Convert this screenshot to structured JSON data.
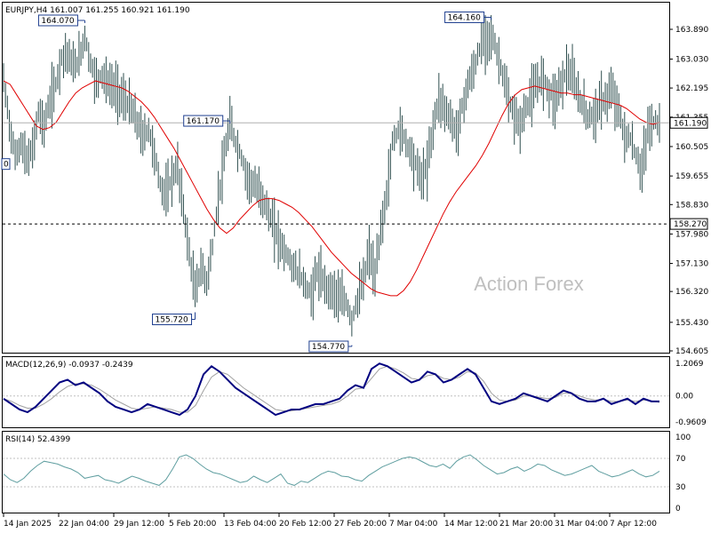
{
  "chart_data": {
    "type": "line",
    "symbol_info": "EURJPY,H4  161.007 161.255 160.921 161.190",
    "watermark": "Action Forex",
    "colors": {
      "price": "#2f4f4f",
      "ma": "#e00000",
      "macd": "#000080",
      "signal": "#a0a0a0",
      "rsi": "#5f9ea0",
      "accent": "#1f3f8f"
    },
    "x_ticks": [
      "14 Jan 2025",
      "22 Jan 04:00",
      "29 Jan 12:00",
      "5 Feb 20:00",
      "13 Feb 04:00",
      "20 Feb 12:00",
      "27 Feb 20:00",
      "7 Mar 04:00",
      "14 Mar 12:00",
      "21 Mar 20:00",
      "31 Mar 04:00",
      "7 Apr 12:00"
    ],
    "price": {
      "y_ticks": [
        "163.890",
        "163.030",
        "162.195",
        "161.355",
        "160.505",
        "159.655",
        "158.830",
        "157.980",
        "157.130",
        "156.320",
        "155.430",
        "154.605"
      ],
      "ylim": [
        154.605,
        163.89
      ],
      "current": "161.190",
      "hline": "158.270",
      "left_label": "0",
      "annotations": [
        {
          "text": "164.070",
          "value": 164.07,
          "t": 14
        },
        {
          "text": "161.170",
          "value": 161.17,
          "t": 39
        },
        {
          "text": "155.720",
          "value": 155.72,
          "t": 33
        },
        {
          "text": "154.770",
          "value": 154.77,
          "t": 60
        },
        {
          "text": "164.160",
          "value": 164.16,
          "t": 84
        }
      ],
      "close": [
        162.4,
        161.2,
        160.2,
        160.6,
        160.1,
        160.4,
        161.5,
        161.1,
        161.8,
        162.3,
        163.1,
        163.2,
        162.8,
        163.0,
        163.7,
        162.9,
        162.4,
        162.6,
        162.3,
        162.2,
        162.0,
        161.8,
        161.6,
        161.2,
        160.8,
        161.0,
        160.3,
        159.4,
        159.1,
        159.6,
        159.9,
        158.7,
        157.4,
        156.3,
        157.0,
        156.6,
        157.6,
        159.0,
        160.1,
        161.2,
        160.6,
        160.2,
        159.6,
        159.4,
        159.2,
        158.9,
        158.4,
        158.0,
        157.6,
        157.3,
        157.0,
        156.8,
        156.5,
        156.2,
        156.9,
        156.6,
        156.4,
        156.3,
        156.1,
        156.0,
        155.5,
        156.1,
        156.6,
        157.5,
        156.7,
        158.1,
        159.1,
        160.6,
        161.0,
        160.8,
        160.4,
        160.0,
        159.6,
        159.9,
        161.1,
        161.9,
        161.6,
        161.3,
        160.9,
        161.6,
        162.3,
        162.7,
        163.3,
        163.6,
        163.8,
        163.2,
        162.6,
        161.8,
        161.4,
        161.1,
        161.6,
        162.0,
        162.3,
        162.5,
        162.1,
        161.9,
        162.3,
        162.7,
        162.5,
        162.0,
        161.6,
        161.3,
        161.5,
        161.8,
        161.9,
        162.1,
        161.5,
        160.8,
        160.7,
        160.2,
        159.8,
        161.0,
        161.2,
        161.19
      ],
      "ma": [
        162.4,
        162.3,
        162.0,
        161.7,
        161.4,
        161.1,
        161.0,
        161.05,
        161.2,
        161.5,
        161.8,
        162.05,
        162.2,
        162.3,
        162.4,
        162.35,
        162.3,
        162.25,
        162.2,
        162.1,
        161.95,
        161.8,
        161.6,
        161.35,
        161.05,
        160.75,
        160.45,
        160.1,
        159.75,
        159.4,
        159.05,
        158.7,
        158.4,
        158.15,
        158.0,
        158.15,
        158.4,
        158.6,
        158.8,
        158.95,
        159.0,
        159.0,
        158.95,
        158.85,
        158.75,
        158.6,
        158.4,
        158.2,
        157.95,
        157.7,
        157.45,
        157.25,
        157.05,
        156.85,
        156.7,
        156.55,
        156.4,
        156.3,
        156.25,
        156.2,
        156.2,
        156.35,
        156.6,
        156.95,
        157.35,
        157.75,
        158.15,
        158.55,
        158.9,
        159.2,
        159.45,
        159.7,
        159.95,
        160.25,
        160.6,
        161.0,
        161.4,
        161.75,
        162.0,
        162.15,
        162.2,
        162.25,
        162.2,
        162.15,
        162.1,
        162.05,
        162.05,
        162.0,
        162.0,
        161.95,
        161.9,
        161.85,
        161.8,
        161.75,
        161.7,
        161.6,
        161.45,
        161.3,
        161.2,
        161.15,
        161.2
      ]
    },
    "macd": {
      "label": "MACD(12,26,9) -0.0937 -0.2439",
      "y_ticks": [
        "1.2069",
        "0.00",
        "-0.9609"
      ],
      "ylim": [
        -0.9609,
        1.2069
      ],
      "main": [
        -0.1,
        -0.3,
        -0.5,
        -0.6,
        -0.4,
        -0.1,
        0.2,
        0.5,
        0.6,
        0.4,
        0.5,
        0.3,
        0.1,
        -0.2,
        -0.4,
        -0.5,
        -0.6,
        -0.5,
        -0.3,
        -0.4,
        -0.5,
        -0.6,
        -0.7,
        -0.5,
        0.0,
        0.8,
        1.1,
        0.9,
        0.6,
        0.3,
        0.1,
        -0.1,
        -0.3,
        -0.5,
        -0.7,
        -0.6,
        -0.5,
        -0.5,
        -0.4,
        -0.3,
        -0.3,
        -0.2,
        -0.1,
        0.2,
        0.4,
        0.3,
        1.0,
        1.2,
        1.1,
        0.9,
        0.7,
        0.5,
        0.6,
        0.9,
        0.8,
        0.5,
        0.6,
        0.8,
        1.0,
        0.8,
        0.3,
        -0.2,
        -0.3,
        -0.2,
        -0.1,
        0.1,
        0.0,
        -0.1,
        -0.2,
        0.0,
        0.2,
        0.1,
        -0.1,
        -0.2,
        -0.2,
        -0.1,
        -0.3,
        -0.2,
        -0.1,
        -0.3,
        -0.1,
        -0.2,
        -0.2
      ],
      "signal": [
        -0.1,
        -0.2,
        -0.35,
        -0.45,
        -0.45,
        -0.3,
        -0.1,
        0.15,
        0.35,
        0.45,
        0.45,
        0.4,
        0.25,
        0.05,
        -0.15,
        -0.3,
        -0.45,
        -0.5,
        -0.45,
        -0.4,
        -0.45,
        -0.5,
        -0.6,
        -0.6,
        -0.35,
        0.2,
        0.7,
        0.9,
        0.8,
        0.55,
        0.3,
        0.1,
        -0.1,
        -0.3,
        -0.5,
        -0.55,
        -0.55,
        -0.5,
        -0.45,
        -0.4,
        -0.35,
        -0.3,
        -0.2,
        0.0,
        0.25,
        0.3,
        0.65,
        1.0,
        1.1,
        1.0,
        0.85,
        0.65,
        0.6,
        0.75,
        0.8,
        0.65,
        0.6,
        0.7,
        0.9,
        0.85,
        0.55,
        0.1,
        -0.15,
        -0.2,
        -0.15,
        0.0,
        0.0,
        -0.05,
        -0.1,
        -0.05,
        0.1,
        0.1,
        0.0,
        -0.1,
        -0.15,
        -0.12,
        -0.2,
        -0.2,
        -0.15,
        -0.2,
        -0.15,
        -0.18,
        -0.24
      ]
    },
    "rsi": {
      "label": "RSI(14) 52.4399",
      "y_ticks": [
        "100",
        "70",
        "30",
        "0"
      ],
      "ylim": [
        0,
        100
      ],
      "levels": [
        70,
        30
      ],
      "values": [
        48,
        40,
        36,
        42,
        52,
        60,
        66,
        64,
        62,
        58,
        55,
        50,
        42,
        44,
        46,
        40,
        38,
        35,
        40,
        45,
        42,
        38,
        35,
        32,
        40,
        55,
        72,
        75,
        70,
        62,
        55,
        50,
        48,
        44,
        40,
        36,
        38,
        45,
        40,
        36,
        42,
        48,
        35,
        32,
        38,
        36,
        42,
        48,
        52,
        50,
        45,
        44,
        40,
        38,
        46,
        52,
        58,
        62,
        66,
        70,
        72,
        70,
        65,
        60,
        58,
        62,
        56,
        66,
        72,
        75,
        68,
        60,
        54,
        48,
        50,
        55,
        58,
        52,
        56,
        62,
        60,
        54,
        50,
        46,
        48,
        52,
        56,
        60,
        52,
        48,
        44,
        46,
        50,
        54,
        48,
        44,
        46,
        52
      ]
    }
  }
}
